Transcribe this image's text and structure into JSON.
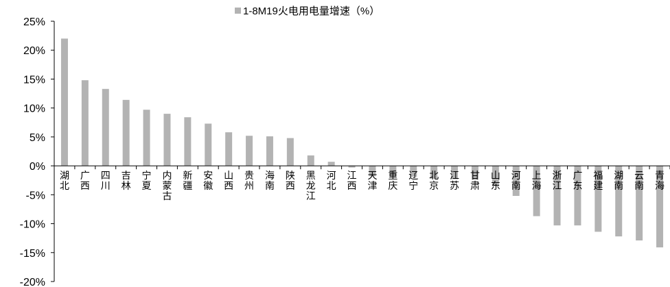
{
  "chart_data": {
    "type": "bar",
    "legend": {
      "label": "1-8M19火电用电量增速（%）",
      "placement": "top-center"
    },
    "colors": {
      "bar": "#b3b3b3",
      "axis": "#000000"
    },
    "ylim": [
      -20,
      25
    ],
    "yticks": [
      "25%",
      "20%",
      "15%",
      "10%",
      "5%",
      "0%",
      "-5%",
      "-10%",
      "-15%",
      "-20%"
    ],
    "grid": false,
    "categories": [
      "湖北",
      "广西",
      "四川",
      "吉林",
      "宁夏",
      "内蒙古",
      "新疆",
      "安徽",
      "山西",
      "贵州",
      "海南",
      "陕西",
      "黑龙江",
      "河北",
      "江西",
      "天津",
      "重庆",
      "辽宁",
      "北京",
      "江苏",
      "甘肃",
      "山东",
      "河南",
      "上海",
      "浙江",
      "广东",
      "福建",
      "湖南",
      "云南",
      "青海"
    ],
    "values": [
      22.0,
      14.8,
      13.3,
      11.4,
      9.7,
      9.0,
      8.4,
      7.3,
      5.8,
      5.2,
      5.1,
      4.8,
      1.8,
      0.7,
      -0.3,
      -1.8,
      -1.8,
      -1.9,
      -2.2,
      -2.3,
      -2.4,
      -3.5,
      -5.2,
      -8.7,
      -10.3,
      -10.3,
      -11.4,
      -12.2,
      -12.9,
      -14.1
    ]
  }
}
